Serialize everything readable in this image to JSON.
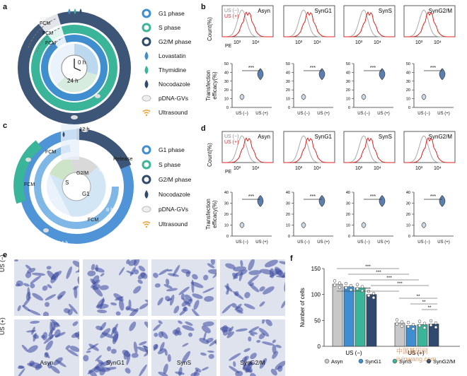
{
  "panels": {
    "a": "a",
    "b": "b",
    "c": "c",
    "d": "d",
    "e": "e",
    "f": "f"
  },
  "panel_a": {
    "fcm": [
      "FCM",
      "FCM",
      "FCM"
    ],
    "clock_start": "0 h",
    "clock_end": "24 h",
    "legend": [
      {
        "label": "G1 phase",
        "icon": "ring-light-blue",
        "color": "#3f8fd0"
      },
      {
        "label": "S phase",
        "icon": "ring-teal",
        "color": "#3ab59a"
      },
      {
        "label": "G2/M phase",
        "icon": "ring-navy",
        "color": "#2f4a6e"
      },
      {
        "label": "Lovastatin",
        "icon": "drop-blue",
        "color": "#3f8fd0"
      },
      {
        "label": "Thymidine",
        "icon": "drop-teal",
        "color": "#3ab59a"
      },
      {
        "label": "Nocodazole",
        "icon": "drop-navy",
        "color": "#2f4a6e"
      },
      {
        "label": "pDNA-GVs",
        "icon": "capsule",
        "color": "#d9d9d9"
      },
      {
        "label": "Ultrasound",
        "icon": "wifi-orange",
        "color": "#f0a030"
      }
    ]
  },
  "panel_c": {
    "fcm": [
      "FCM",
      "FCM",
      "FCM"
    ],
    "time_12": "12 h",
    "time_6": "6 h",
    "time_8": "8 h",
    "time_14": "14 h",
    "release": "Release",
    "phase_s": "S",
    "phase_g2m": "G2/M",
    "phase_g1": "G1",
    "legend": [
      {
        "label": "G1 phase",
        "icon": "ring-light-blue",
        "color": "#3f8fd0"
      },
      {
        "label": "S phase",
        "icon": "ring-teal",
        "color": "#3ab59a"
      },
      {
        "label": "G2/M phase",
        "icon": "ring-navy",
        "color": "#2f4a6e"
      },
      {
        "label": "Nocodazole",
        "icon": "drop-navy",
        "color": "#2f4a6e"
      },
      {
        "label": "pDNA-GVs",
        "icon": "capsule",
        "color": "#d9d9d9"
      },
      {
        "label": "Ultrasound",
        "icon": "wifi-orange",
        "color": "#f0a030"
      }
    ]
  },
  "histograms": {
    "legend_neg": "US (−)",
    "legend_pos": "US (+)",
    "count_label": "Count(%)",
    "pe": "PE",
    "ticks": [
      "10³",
      "10⁴"
    ],
    "titles": [
      "Asyn",
      "SynG1",
      "SynS",
      "SynG2/M"
    ]
  },
  "violins": {
    "ylabel": "Transfection efficacy(%)",
    "xticks": [
      "US (−)",
      "US (+)"
    ],
    "yticks_b": [
      "0",
      "10",
      "20",
      "30",
      "40",
      "50"
    ],
    "yticks_d": [
      "0",
      "10",
      "20",
      "30",
      "40"
    ],
    "sig": "***"
  },
  "panel_e": {
    "row_labels": [
      "US (−)",
      "US (+)"
    ],
    "col_labels": [
      "Asyn",
      "SynG1",
      "SynS",
      "SynG2/M"
    ]
  },
  "chart_data": [
    {
      "type": "bar",
      "title": "",
      "ylabel": "Number of cells",
      "ylim": [
        0,
        150
      ],
      "yticks": [
        "0",
        "50",
        "100",
        "150"
      ],
      "groups": [
        "US (−)",
        "US (+)"
      ],
      "series": [
        {
          "name": "Asyn",
          "values": [
            120,
            45
          ],
          "color": "#c8c8c8"
        },
        {
          "name": "SynG1",
          "values": [
            115,
            40
          ],
          "color": "#3f8fd0"
        },
        {
          "name": "SynS",
          "values": [
            113,
            42
          ],
          "color": "#3ab59a"
        },
        {
          "name": "SynG2/M",
          "values": [
            100,
            43
          ],
          "color": "#2f4a6e"
        }
      ],
      "significance": [
        "***",
        "***",
        "***",
        "***",
        "***",
        "**",
        "**",
        "**"
      ]
    }
  ],
  "watermark": "中国基因网 jiyinwang.com"
}
